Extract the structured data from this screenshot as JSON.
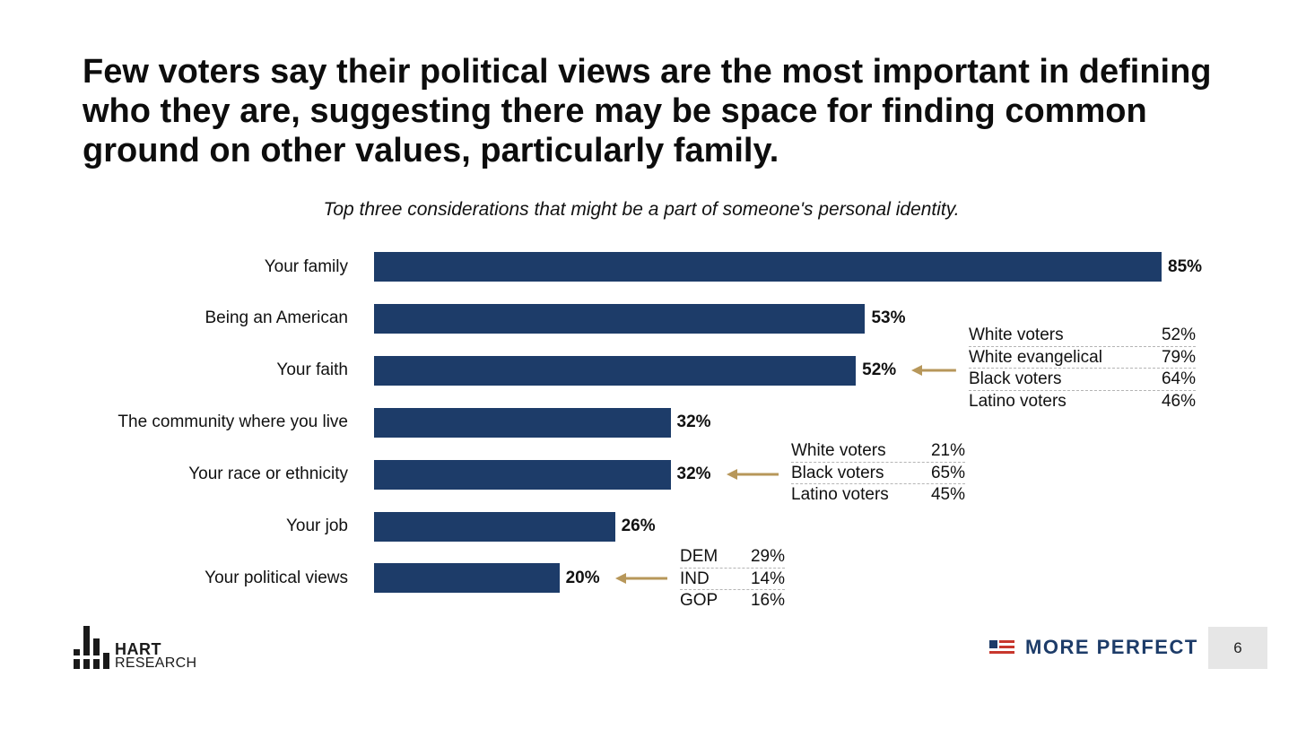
{
  "slide": {
    "title": "Few voters say their political views are the most important in defining who they are, suggesting there may be space for finding common ground on other values, particularly family.",
    "page_number": "6"
  },
  "chart_data": {
    "type": "bar",
    "orientation": "horizontal",
    "title": "Top three considerations that might be a part of someone's personal identity.",
    "categories": [
      "Your family",
      "Being an American",
      "Your faith",
      "The community where you live",
      "Your race or ethnicity",
      "Your job",
      "Your political views"
    ],
    "values": [
      85,
      53,
      52,
      32,
      32,
      26,
      20
    ],
    "value_labels": [
      "85%",
      "53%",
      "52%",
      "32%",
      "32%",
      "26%",
      "20%"
    ],
    "xlim": [
      0,
      85
    ],
    "bar_color": "#1d3c69",
    "arrow_color": "#b7975a",
    "breakouts": [
      {
        "category": "Your faith",
        "rows": [
          {
            "label": "White voters",
            "value": "52%"
          },
          {
            "label": "White evangelical",
            "value": "79%"
          },
          {
            "label": "Black voters",
            "value": "64%"
          },
          {
            "label": "Latino voters",
            "value": "46%"
          }
        ]
      },
      {
        "category": "Your race or ethnicity",
        "rows": [
          {
            "label": "White voters",
            "value": "21%"
          },
          {
            "label": "Black voters",
            "value": "65%"
          },
          {
            "label": "Latino voters",
            "value": "45%"
          }
        ]
      },
      {
        "category": "Your political views",
        "rows": [
          {
            "label": "DEM",
            "value": "29%"
          },
          {
            "label": "IND",
            "value": "14%"
          },
          {
            "label": "GOP",
            "value": "16%"
          }
        ]
      }
    ]
  },
  "branding": {
    "hart_line1": "HART",
    "hart_line2": "RESEARCH",
    "more_perfect": "MORE PERFECT",
    "navy": "#1d3c69",
    "red": "#c8372d"
  }
}
